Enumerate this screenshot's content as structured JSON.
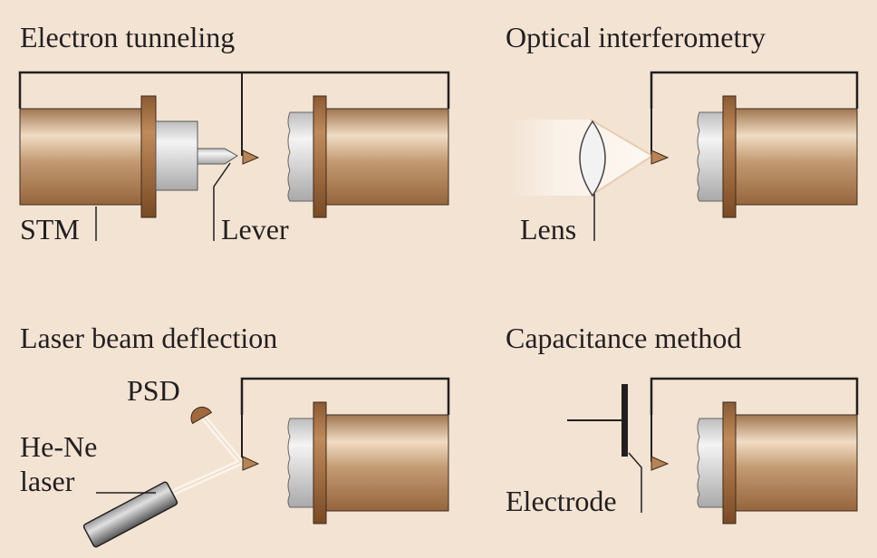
{
  "panels": {
    "electron_tunneling": {
      "title": "Electron tunneling",
      "labels": {
        "stm": "STM",
        "lever": "Lever"
      }
    },
    "optical_interferometry": {
      "title": "Optical interferometry",
      "labels": {
        "lens": "Lens"
      }
    },
    "laser_beam_deflection": {
      "title": "Laser beam deflection",
      "labels": {
        "psd": "PSD",
        "laser_line1": "He-Ne",
        "laser_line2": "laser"
      }
    },
    "capacitance_method": {
      "title": "Capacitance method",
      "labels": {
        "electrode": "Electrode"
      }
    }
  },
  "colors": {
    "background": "#f2e3d3",
    "cylinder_body": "#b5875f",
    "flange": "#8a5a32",
    "steel": "#cfcfcf",
    "line": "#231f20"
  }
}
